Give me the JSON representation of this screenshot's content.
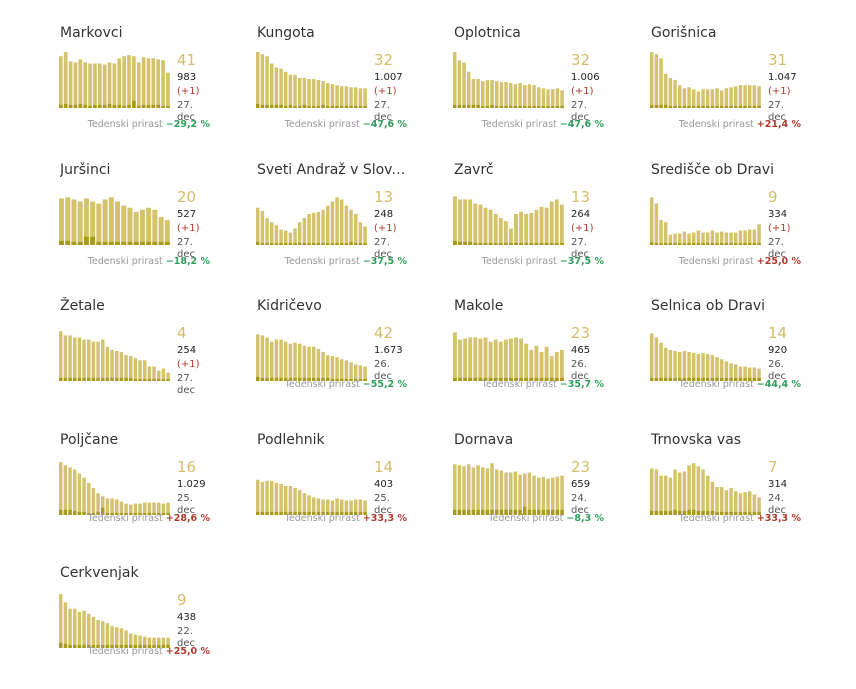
{
  "labels": {
    "growth_label": "Tedenski prirast"
  },
  "colors": {
    "bar": "#d4c36c",
    "bar_dark": "#a89a1c",
    "big_number": "#d4bd6a",
    "negative": "#2e9e5b",
    "positive": "#b03a2e"
  },
  "municipalities": [
    {
      "name": "Markovci",
      "active": "41",
      "total": "983",
      "increase": "(+1)",
      "date": "27. dec",
      "growth": "−29,2 %",
      "trend": "down"
    },
    {
      "name": "Kungota",
      "active": "32",
      "total": "1.007",
      "increase": "(+1)",
      "date": "27. dec",
      "growth": "−47,6 %",
      "trend": "down"
    },
    {
      "name": "Oplotnica",
      "active": "32",
      "total": "1.006",
      "increase": "(+1)",
      "date": "27. dec",
      "growth": "−47,6 %",
      "trend": "down"
    },
    {
      "name": "Gorišnica",
      "active": "31",
      "total": "1.047",
      "increase": "(+1)",
      "date": "27. dec",
      "growth": "+21,4 %",
      "trend": "up"
    },
    {
      "name": "Juršinci",
      "active": "20",
      "total": "527",
      "increase": "(+1)",
      "date": "27. dec",
      "growth": "−18,2 %",
      "trend": "down"
    },
    {
      "name": "Sveti Andraž v Slov....",
      "active": "13",
      "total": "248",
      "increase": "(+1)",
      "date": "27. dec",
      "growth": "−37,5 %",
      "trend": "down"
    },
    {
      "name": "Zavrč",
      "active": "13",
      "total": "264",
      "increase": "(+1)",
      "date": "27. dec",
      "growth": "−37,5 %",
      "trend": "down"
    },
    {
      "name": "Središče ob Dravi",
      "active": "9",
      "total": "334",
      "increase": "(+1)",
      "date": "27. dec",
      "growth": "+25,0 %",
      "trend": "up"
    },
    {
      "name": "Žetale",
      "active": "4",
      "total": "254",
      "increase": "(+1)",
      "date": "27. dec",
      "growth": "",
      "trend": "none"
    },
    {
      "name": "Kidričevo",
      "active": "42",
      "total": "1.673",
      "increase": "",
      "date": "26. dec",
      "growth": "−55,2 %",
      "trend": "down"
    },
    {
      "name": "Makole",
      "active": "23",
      "total": "465",
      "increase": "",
      "date": "26. dec",
      "growth": "−35,7 %",
      "trend": "down"
    },
    {
      "name": "Selnica ob Dravi",
      "active": "14",
      "total": "920",
      "increase": "",
      "date": "26. dec",
      "growth": "−44,4 %",
      "trend": "down"
    },
    {
      "name": "Poljčane",
      "active": "16",
      "total": "1.029",
      "increase": "",
      "date": "25. dec",
      "growth": "+28,6 %",
      "trend": "up"
    },
    {
      "name": "Podlehnik",
      "active": "14",
      "total": "403",
      "increase": "",
      "date": "25. dec",
      "growth": "+33,3 %",
      "trend": "up"
    },
    {
      "name": "Dornava",
      "active": "23",
      "total": "659",
      "increase": "",
      "date": "24. dec",
      "growth": "−8,3 %",
      "trend": "down"
    },
    {
      "name": "Trnovska vas",
      "active": "7",
      "total": "314",
      "increase": "",
      "date": "24. dec",
      "growth": "+33,3 %",
      "trend": "up"
    },
    {
      "name": "Cerkvenjak",
      "active": "9",
      "total": "438",
      "increase": "",
      "date": "22. dec",
      "growth": "+25,0 %",
      "trend": "up"
    }
  ],
  "chart_data": [
    {
      "type": "bar",
      "title": "Markovci",
      "values": [
        50,
        54,
        45,
        44,
        47,
        44,
        43,
        43,
        43,
        42,
        44,
        43,
        48,
        50,
        51,
        50,
        44,
        49,
        48,
        48,
        47,
        46,
        34
      ],
      "daily": [
        3,
        4,
        3,
        3,
        4,
        3,
        2,
        3,
        3,
        3,
        4,
        3,
        3,
        2,
        3,
        7,
        2,
        3,
        3,
        3,
        3,
        2,
        2
      ]
    },
    {
      "type": "bar",
      "title": "Kungota",
      "values": [
        54,
        52,
        50,
        43,
        39,
        38,
        35,
        32,
        32,
        29,
        29,
        28,
        28,
        27,
        26,
        24,
        23,
        22,
        21,
        21,
        20,
        20,
        19,
        19
      ],
      "daily": [
        4,
        3,
        3,
        3,
        3,
        3,
        2,
        3,
        2,
        2,
        3,
        2,
        2,
        2,
        3,
        2,
        2,
        2,
        2,
        2,
        2,
        2,
        2,
        2
      ]
    },
    {
      "type": "bar",
      "title": "Oplotnica",
      "values": [
        54,
        46,
        44,
        35,
        28,
        28,
        26,
        27,
        27,
        26,
        25,
        25,
        24,
        23,
        24,
        22,
        23,
        22,
        20,
        19,
        18,
        18,
        19,
        17
      ],
      "daily": [
        3,
        3,
        3,
        3,
        3,
        3,
        2,
        2,
        3,
        2,
        2,
        2,
        2,
        2,
        2,
        2,
        2,
        2,
        2,
        2,
        2,
        2,
        2,
        2
      ]
    },
    {
      "type": "bar",
      "title": "Gorišnica",
      "values": [
        54,
        52,
        48,
        33,
        29,
        27,
        22,
        19,
        20,
        18,
        16,
        18,
        18,
        18,
        19,
        17,
        19,
        20,
        21,
        22,
        22,
        22,
        22,
        21
      ],
      "daily": [
        3,
        3,
        3,
        3,
        2,
        2,
        2,
        2,
        2,
        2,
        2,
        2,
        2,
        2,
        2,
        2,
        2,
        2,
        2,
        2,
        2,
        2,
        2,
        2
      ]
    },
    {
      "type": "bar",
      "title": "Juršinci",
      "values": [
        45,
        46,
        44,
        42,
        45,
        42,
        40,
        44,
        46,
        42,
        38,
        36,
        32,
        34,
        36,
        34,
        27,
        24
      ],
      "daily": [
        4,
        4,
        3,
        3,
        8,
        8,
        3,
        3,
        3,
        3,
        3,
        3,
        3,
        3,
        3,
        3,
        3,
        3
      ]
    },
    {
      "type": "bar",
      "title": "Sveti Andraž v Slov....",
      "values": [
        36,
        33,
        26,
        22,
        19,
        15,
        14,
        12,
        16,
        22,
        26,
        30,
        31,
        32,
        34,
        38,
        42,
        46,
        44,
        38,
        34,
        30,
        22,
        18
      ],
      "daily": [
        3,
        2,
        2,
        2,
        2,
        2,
        2,
        2,
        2,
        2,
        2,
        2,
        2,
        2,
        2,
        2,
        2,
        2,
        2,
        2,
        3,
        2,
        2,
        2
      ]
    },
    {
      "type": "bar",
      "title": "Zavrč",
      "values": [
        47,
        44,
        44,
        44,
        40,
        39,
        36,
        34,
        30,
        26,
        23,
        16,
        30,
        32,
        30,
        31,
        34,
        37,
        36,
        42,
        44,
        39
      ],
      "daily": [
        4,
        3,
        3,
        3,
        2,
        2,
        2,
        2,
        2,
        2,
        2,
        2,
        2,
        2,
        2,
        2,
        2,
        2,
        2,
        2,
        2,
        2
      ]
    },
    {
      "type": "bar",
      "title": "Središče ob Dravi",
      "values": [
        46,
        40,
        24,
        22,
        10,
        11,
        11,
        13,
        11,
        12,
        14,
        12,
        12,
        14,
        12,
        13,
        12,
        12,
        12,
        14,
        14,
        15,
        15,
        20
      ],
      "daily": [
        3,
        2,
        2,
        2,
        2,
        2,
        2,
        2,
        2,
        2,
        2,
        2,
        2,
        2,
        2,
        2,
        2,
        2,
        2,
        2,
        2,
        2,
        2,
        2
      ]
    },
    {
      "type": "bar",
      "title": "Žetale",
      "values": [
        48,
        44,
        44,
        42,
        42,
        40,
        40,
        38,
        38,
        40,
        33,
        30,
        29,
        28,
        25,
        24,
        22,
        20,
        20,
        14,
        14,
        10,
        12,
        8
      ],
      "daily": [
        3,
        3,
        3,
        3,
        3,
        3,
        3,
        3,
        3,
        3,
        3,
        3,
        3,
        3,
        3,
        3,
        2,
        2,
        2,
        2,
        2,
        2,
        2,
        2
      ]
    },
    {
      "type": "bar",
      "title": "Kidričevo",
      "values": [
        45,
        44,
        42,
        38,
        40,
        40,
        38,
        36,
        37,
        36,
        34,
        33,
        33,
        31,
        28,
        25,
        24,
        23,
        21,
        20,
        18,
        16,
        15,
        14
      ],
      "daily": [
        4,
        3,
        3,
        3,
        3,
        3,
        3,
        3,
        3,
        3,
        3,
        3,
        3,
        3,
        3,
        3,
        2,
        2,
        2,
        2,
        2,
        2,
        2,
        2
      ]
    },
    {
      "type": "bar",
      "title": "Makole",
      "values": [
        47,
        40,
        41,
        42,
        42,
        41,
        42,
        38,
        40,
        38,
        40,
        41,
        42,
        41,
        36,
        30,
        34,
        28,
        33,
        24,
        28,
        30
      ],
      "daily": [
        3,
        3,
        3,
        3,
        3,
        3,
        3,
        3,
        3,
        3,
        3,
        3,
        3,
        3,
        3,
        3,
        3,
        3,
        3,
        3,
        3,
        3
      ]
    },
    {
      "type": "bar",
      "title": "Selnica ob Dravi",
      "values": [
        46,
        42,
        37,
        32,
        30,
        29,
        28,
        29,
        28,
        27,
        26,
        27,
        26,
        25,
        23,
        21,
        19,
        17,
        16,
        14,
        14,
        13,
        13,
        12
      ],
      "daily": [
        3,
        3,
        3,
        3,
        3,
        3,
        3,
        3,
        3,
        3,
        3,
        3,
        3,
        3,
        3,
        3,
        3,
        3,
        3,
        3,
        3,
        3,
        3,
        3
      ]
    },
    {
      "type": "bar",
      "title": "Poljčane",
      "values": [
        51,
        48,
        46,
        44,
        40,
        36,
        31,
        26,
        21,
        18,
        16,
        16,
        15,
        13,
        11,
        10,
        11,
        11,
        12,
        12,
        12,
        12,
        11,
        12
      ],
      "daily": [
        5,
        5,
        5,
        4,
        3,
        3,
        2,
        2,
        3,
        7,
        2,
        2,
        2,
        2,
        2,
        2,
        2,
        2,
        2,
        2,
        2,
        2,
        2,
        2
      ]
    },
    {
      "type": "bar",
      "title": "Podlehnik",
      "values": [
        34,
        32,
        33,
        33,
        31,
        30,
        28,
        28,
        26,
        24,
        21,
        19,
        17,
        16,
        15,
        15,
        14,
        16,
        15,
        14,
        14,
        15,
        15,
        14
      ],
      "daily": [
        3,
        3,
        3,
        3,
        3,
        3,
        3,
        3,
        3,
        3,
        3,
        3,
        3,
        3,
        3,
        3,
        3,
        3,
        3,
        3,
        3,
        3,
        3,
        3
      ]
    },
    {
      "type": "bar",
      "title": "Dornava",
      "values": [
        49,
        48,
        47,
        49,
        46,
        48,
        46,
        45,
        50,
        44,
        43,
        41,
        41,
        42,
        39,
        40,
        41,
        38,
        36,
        37,
        35,
        36,
        37,
        38
      ],
      "daily": [
        5,
        5,
        5,
        5,
        5,
        5,
        5,
        5,
        5,
        5,
        5,
        5,
        5,
        5,
        5,
        8,
        5,
        5,
        5,
        5,
        5,
        5,
        5,
        5
      ]
    },
    {
      "type": "bar",
      "title": "Trnovska vas",
      "values": [
        45,
        44,
        38,
        38,
        36,
        44,
        41,
        42,
        48,
        50,
        47,
        44,
        38,
        32,
        27,
        27,
        24,
        26,
        23,
        21,
        22,
        23,
        20,
        17
      ],
      "daily": [
        4,
        4,
        4,
        4,
        4,
        5,
        4,
        4,
        5,
        5,
        4,
        4,
        4,
        4,
        3,
        3,
        3,
        3,
        3,
        3,
        3,
        3,
        3,
        3
      ]
    },
    {
      "type": "bar",
      "title": "Cerkvenjak",
      "values": [
        52,
        44,
        38,
        38,
        35,
        36,
        33,
        30,
        27,
        26,
        24,
        21,
        20,
        19,
        17,
        14,
        13,
        12,
        11,
        10,
        10,
        10,
        10,
        10
      ],
      "daily": [
        5,
        4,
        3,
        3,
        3,
        3,
        3,
        3,
        3,
        3,
        3,
        3,
        3,
        3,
        3,
        3,
        3,
        3,
        3,
        3,
        3,
        3,
        3,
        3
      ]
    }
  ]
}
